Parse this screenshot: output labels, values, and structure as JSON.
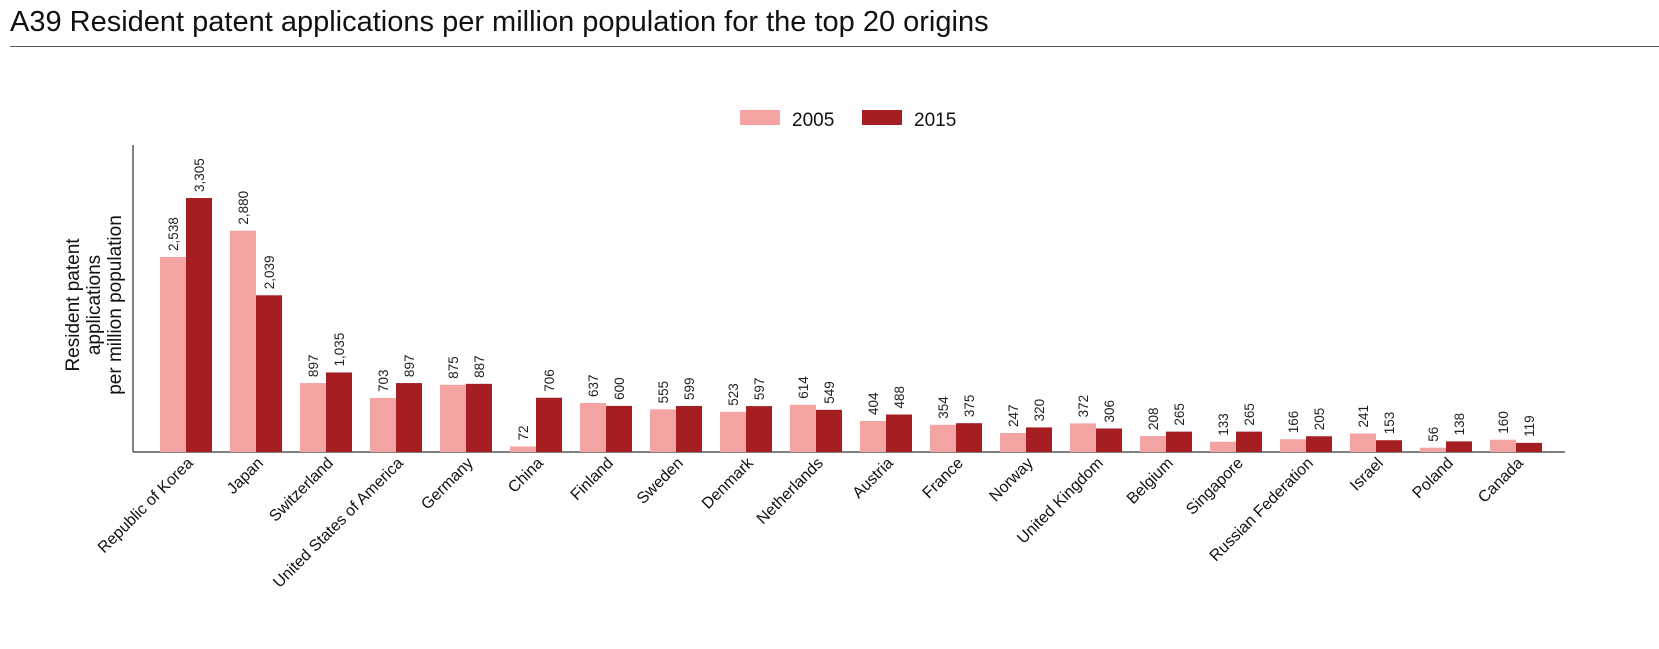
{
  "page": {
    "title": "A39 Resident patent applications per million population for the top 20 origins"
  },
  "chart_data": {
    "type": "bar",
    "title": "A39 Resident patent applications per million population for the top 20 origins",
    "ylabel_lines": [
      "Resident patent applications",
      "per million population"
    ],
    "xlabel": "",
    "ylim": [
      0,
      4000
    ],
    "grid": false,
    "legend_position": "top-center",
    "categories": [
      "Republic of Korea",
      "Japan",
      "Switzerland",
      "United States of America",
      "Germany",
      "China",
      "Finland",
      "Sweden",
      "Denmark",
      "Netherlands",
      "Austria",
      "France",
      "Norway",
      "United Kingdom",
      "Belgium",
      "Singapore",
      "Russian Federation",
      "Israel",
      "Poland",
      "Canada"
    ],
    "series": [
      {
        "name": "2005",
        "color": "#f4a3a3",
        "values": [
          2538,
          2880,
          897,
          703,
          875,
          72,
          637,
          555,
          523,
          614,
          404,
          354,
          247,
          372,
          208,
          133,
          166,
          241,
          56,
          160
        ],
        "labels": [
          "2,538",
          "2,880",
          "897",
          "703",
          "875",
          "72",
          "637",
          "555",
          "523",
          "614",
          "404",
          "354",
          "247",
          "372",
          "208",
          "133",
          "166",
          "241",
          "56",
          "160"
        ]
      },
      {
        "name": "2015",
        "color": "#a51f22",
        "values": [
          3305,
          2039,
          1035,
          897,
          887,
          706,
          600,
          599,
          597,
          549,
          488,
          375,
          320,
          306,
          265,
          265,
          205,
          153,
          138,
          119
        ],
        "labels": [
          "3,305",
          "2,039",
          "1,035",
          "897",
          "887",
          "706",
          "600",
          "599",
          "597",
          "549",
          "488",
          "375",
          "320",
          "306",
          "265",
          "265",
          "205",
          "153",
          "138",
          "119"
        ]
      }
    ]
  }
}
